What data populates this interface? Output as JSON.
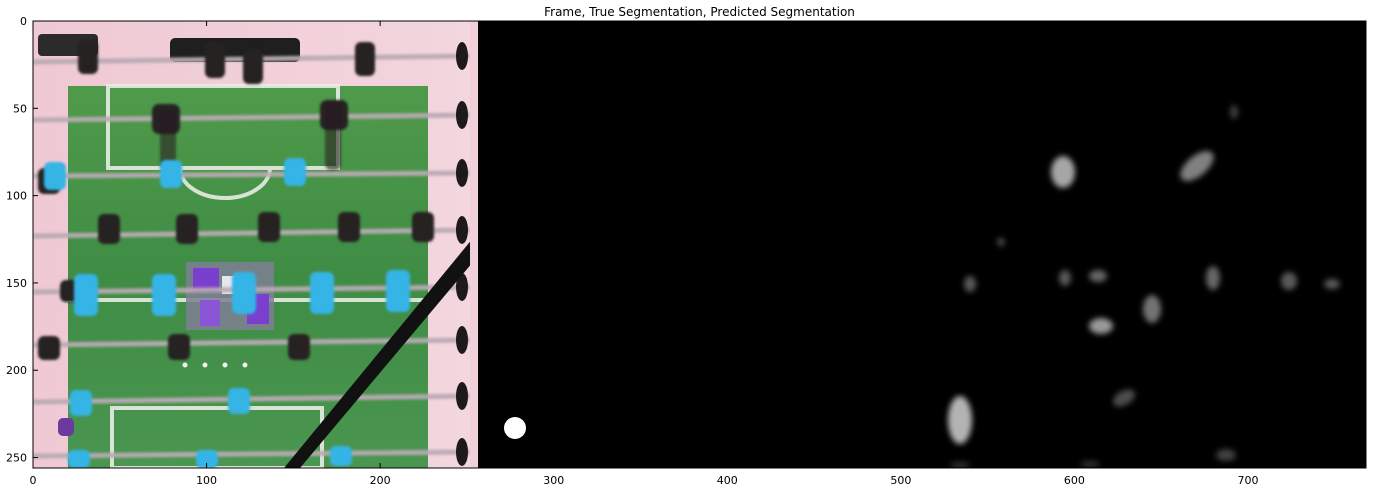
{
  "title": "Frame, True Segmentation, Predicted Segmentation",
  "panels": [
    "frame",
    "true-segmentation",
    "predicted-segmentation"
  ],
  "axes": {
    "x_range": [
      0,
      768
    ],
    "y_range": [
      0,
      256
    ],
    "x_ticks": [
      0,
      100,
      200,
      300,
      400,
      500,
      600,
      700
    ],
    "y_ticks": [
      0,
      50,
      100,
      150,
      200,
      250
    ],
    "y_direction": "down"
  }
}
